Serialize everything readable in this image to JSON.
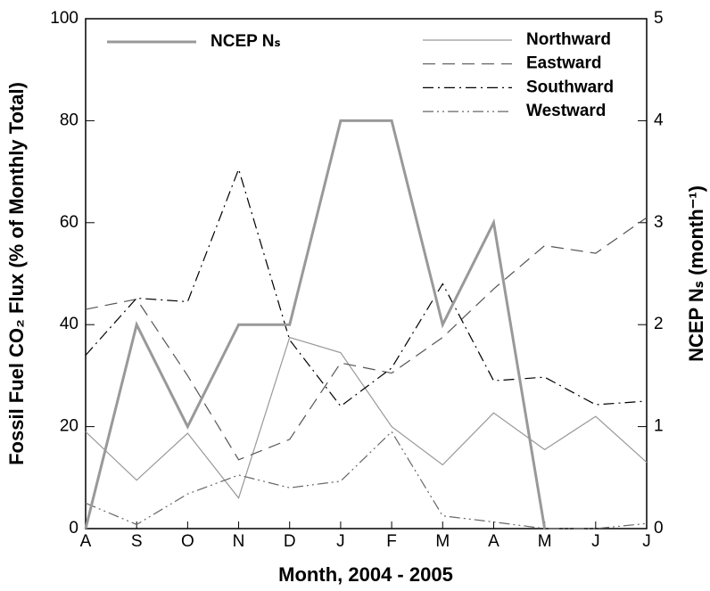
{
  "chart_data": {
    "type": "line",
    "x_label": "Month, 2004 - 2005",
    "y_label": "Fossil Fuel CO₂ Flux (% of Monthly Total)",
    "y2_label": "NCEP Nₛ (month⁻¹)",
    "categories": [
      "A",
      "S",
      "O",
      "N",
      "D",
      "J",
      "F",
      "M",
      "A",
      "M",
      "J",
      "J"
    ],
    "ylim": [
      0,
      100
    ],
    "yticks": [
      0,
      20,
      40,
      60,
      80,
      100
    ],
    "y2lim": [
      0,
      5
    ],
    "y2ticks": [
      0,
      1,
      2,
      3,
      4,
      5
    ],
    "series": [
      {
        "name": "Northward",
        "color": "#999999",
        "style": "solid",
        "values": [
          19,
          9.5,
          18.7,
          6,
          37.5,
          34.5,
          20,
          12.5,
          22.7,
          15.5,
          22,
          13
        ]
      },
      {
        "name": "Eastward",
        "color": "#555555",
        "style": "dashed",
        "values": [
          43,
          45,
          30,
          13.5,
          17.5,
          32.5,
          30.5,
          37.5,
          47,
          55.5,
          54,
          61
        ]
      },
      {
        "name": "Southward",
        "color": "#000000",
        "style": "dashdot",
        "values": [
          34,
          45.2,
          44.5,
          70.5,
          37,
          24,
          31.5,
          48,
          29,
          29.7,
          24.3,
          25
        ]
      },
      {
        "name": "Westward",
        "color": "#666666",
        "style": "dashdotdot",
        "values": [
          5,
          0.8,
          6.8,
          10.5,
          8,
          9.3,
          19,
          2.5,
          1.3,
          0,
          0,
          1
        ]
      },
      {
        "name": "NCEP Nₛ",
        "color": "#999999",
        "style": "solid",
        "axis": "y2",
        "values": [
          0,
          2,
          1,
          2,
          2,
          4,
          4,
          2,
          3,
          0,
          null,
          null
        ]
      }
    ]
  }
}
